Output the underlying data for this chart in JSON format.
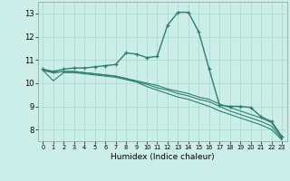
{
  "xlabel": "Humidex (Indice chaleur)",
  "background_color": "#cceee8",
  "grid_color": "#aaddcc",
  "line_color": "#2e7d6e",
  "xlim": [
    -0.5,
    23.5
  ],
  "ylim": [
    7.5,
    13.5
  ],
  "xticks": [
    0,
    1,
    2,
    3,
    4,
    5,
    6,
    7,
    8,
    9,
    10,
    11,
    12,
    13,
    14,
    15,
    16,
    17,
    18,
    19,
    20,
    21,
    22,
    23
  ],
  "yticks": [
    8,
    9,
    10,
    11,
    12,
    13
  ],
  "line1_x": [
    0,
    1,
    2,
    3,
    4,
    5,
    6,
    7,
    8,
    9,
    10,
    11,
    12,
    13,
    14,
    15,
    16,
    17,
    18,
    19,
    20,
    21,
    22,
    23
  ],
  "line1_y": [
    10.6,
    10.5,
    10.6,
    10.65,
    10.65,
    10.7,
    10.75,
    10.8,
    11.3,
    11.25,
    11.1,
    11.15,
    12.5,
    13.05,
    13.05,
    12.2,
    10.6,
    9.05,
    9.0,
    9.0,
    8.95,
    8.55,
    8.35,
    7.7
  ],
  "line2_x": [
    0,
    1,
    2,
    3,
    4,
    5,
    6,
    7,
    8,
    9,
    10,
    11,
    12,
    13,
    14,
    15,
    16,
    17,
    18,
    19,
    20,
    21,
    22,
    23
  ],
  "line2_y": [
    10.55,
    10.45,
    10.5,
    10.5,
    10.45,
    10.4,
    10.35,
    10.3,
    10.2,
    10.1,
    10.0,
    9.9,
    9.75,
    9.65,
    9.55,
    9.4,
    9.3,
    9.1,
    8.95,
    8.8,
    8.65,
    8.5,
    8.3,
    7.65
  ],
  "line3_x": [
    0,
    1,
    2,
    3,
    4,
    5,
    6,
    7,
    8,
    9,
    10,
    11,
    12,
    13,
    14,
    15,
    16,
    17,
    18,
    19,
    20,
    21,
    22,
    23
  ],
  "line3_y": [
    10.55,
    10.1,
    10.45,
    10.45,
    10.4,
    10.35,
    10.3,
    10.25,
    10.15,
    10.05,
    9.95,
    9.8,
    9.7,
    9.55,
    9.45,
    9.3,
    9.2,
    9.0,
    8.8,
    8.65,
    8.5,
    8.35,
    8.15,
    7.6
  ],
  "line4_x": [
    0,
    1,
    2,
    3,
    4,
    5,
    6,
    7,
    8,
    9,
    10,
    11,
    12,
    13,
    14,
    15,
    16,
    17,
    18,
    19,
    20,
    21,
    22,
    23
  ],
  "line4_y": [
    10.55,
    10.45,
    10.5,
    10.5,
    10.45,
    10.4,
    10.35,
    10.3,
    10.2,
    10.05,
    9.85,
    9.7,
    9.55,
    9.4,
    9.3,
    9.15,
    9.0,
    8.8,
    8.65,
    8.5,
    8.35,
    8.2,
    8.0,
    7.55
  ]
}
